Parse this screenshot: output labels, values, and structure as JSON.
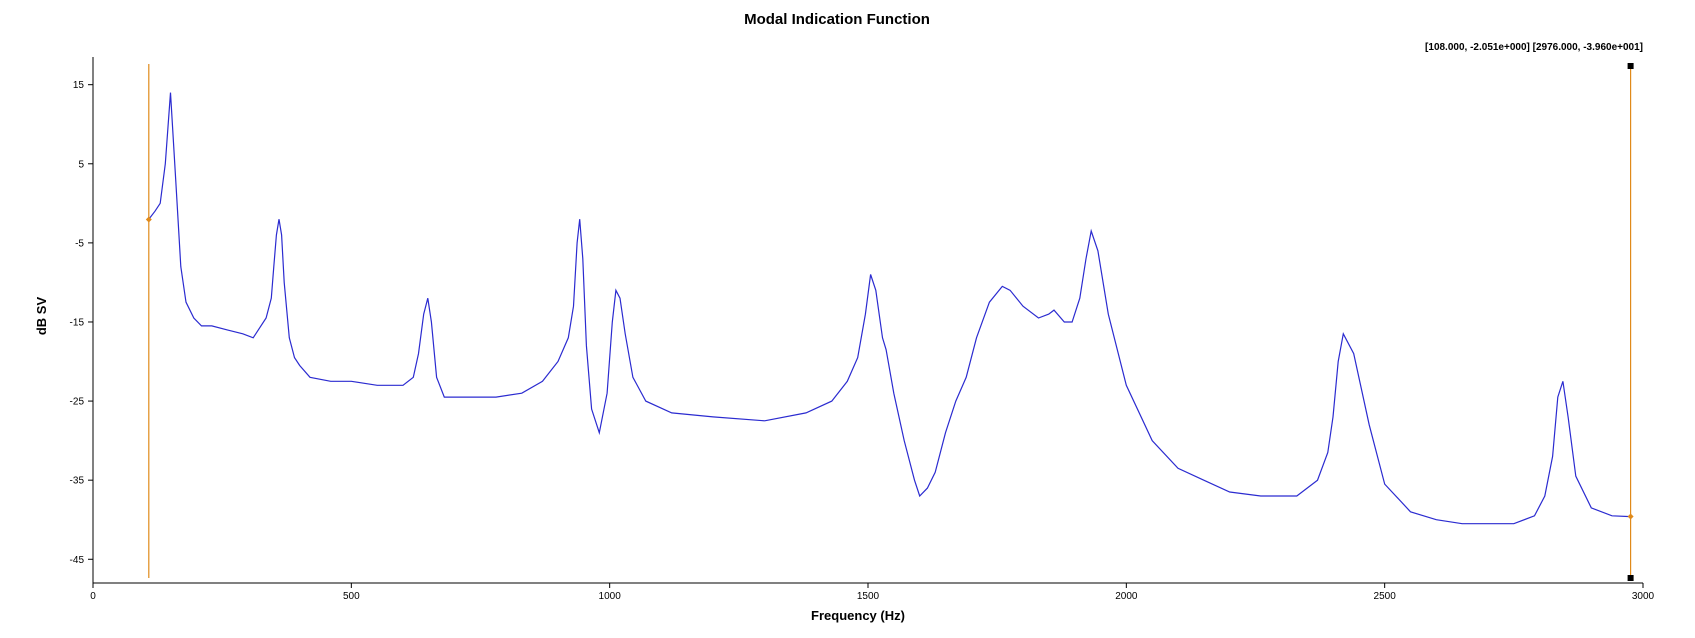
{
  "chart_data": {
    "type": "line",
    "title": "Modal Indication Function",
    "xlabel": "Frequency (Hz)",
    "ylabel": "dB SV",
    "xlim": [
      0,
      3000
    ],
    "ylim": [
      -48,
      18.5
    ],
    "x_ticks": [
      0,
      500,
      1000,
      1500,
      2000,
      2500,
      3000
    ],
    "y_ticks": [
      15,
      5,
      -5,
      -15,
      -25,
      -35,
      -45
    ],
    "grid": false,
    "legend": "none",
    "cursor_readout": "[108.000, -2.051e+000] [2976.000, -3.960e+001]",
    "cursors": [
      {
        "x": 108,
        "y": -2.051
      },
      {
        "x": 2976,
        "y": -39.6
      }
    ],
    "series": [
      {
        "x": [
          108,
          120,
          130,
          140,
          150,
          160,
          170,
          180,
          195,
          210,
          230,
          260,
          290,
          310,
          320,
          335,
          345,
          350,
          355,
          360,
          365,
          370,
          380,
          390,
          400,
          420,
          460,
          500,
          550,
          600,
          620,
          630,
          640,
          648,
          655,
          665,
          680,
          720,
          780,
          830,
          870,
          900,
          920,
          930,
          937,
          942,
          948,
          955,
          965,
          980,
          995,
          1005,
          1012,
          1020,
          1030,
          1045,
          1070,
          1120,
          1200,
          1300,
          1380,
          1430,
          1460,
          1480,
          1495,
          1505,
          1515,
          1528,
          1535,
          1550,
          1570,
          1590,
          1600,
          1615,
          1630,
          1650,
          1670,
          1690,
          1710,
          1735,
          1760,
          1775,
          1800,
          1830,
          1850,
          1860,
          1880,
          1895,
          1910,
          1922,
          1932,
          1945,
          1965,
          2000,
          2050,
          2100,
          2150,
          2200,
          2260,
          2330,
          2370,
          2390,
          2400,
          2410,
          2420,
          2440,
          2470,
          2500,
          2550,
          2600,
          2650,
          2700,
          2750,
          2790,
          2810,
          2825,
          2835,
          2845,
          2855,
          2870,
          2900,
          2940,
          2976
        ],
        "y": [
          -2,
          -1,
          0,
          5,
          14,
          3,
          -8,
          -12.5,
          -14.5,
          -15.5,
          -15.5,
          -16,
          -16.5,
          -17,
          -16,
          -14.5,
          -12,
          -8,
          -4,
          -2,
          -4,
          -10,
          -17,
          -19.5,
          -20.5,
          -22,
          -22.5,
          -22.5,
          -23,
          -23,
          -22,
          -19,
          -14,
          -12,
          -15,
          -22,
          -24.5,
          -24.5,
          -24.5,
          -24,
          -22.5,
          -20,
          -17,
          -13,
          -5,
          -2,
          -7,
          -18,
          -26,
          -29,
          -24,
          -15,
          -11,
          -12,
          -16.5,
          -22,
          -25,
          -26.5,
          -27,
          -27.5,
          -26.5,
          -25,
          -22.5,
          -19.5,
          -14,
          -9,
          -11,
          -17,
          -18.5,
          -24,
          -30,
          -35,
          -37,
          -36,
          -34,
          -29,
          -25,
          -22,
          -17,
          -12.5,
          -10.5,
          -11,
          -13,
          -14.5,
          -14,
          -13.5,
          -15,
          -15,
          -12,
          -7,
          -3.5,
          -6,
          -14,
          -23,
          -30,
          -33.5,
          -35,
          -36.5,
          -37,
          -37,
          -35,
          -31.5,
          -27,
          -20,
          -16.5,
          -19,
          -28,
          -35.5,
          -39,
          -40,
          -40.5,
          -40.5,
          -40.5,
          -39.5,
          -37,
          -32,
          -24.5,
          -22.5,
          -27,
          -34.5,
          -38.5,
          -39.5,
          -39.6
        ]
      }
    ]
  }
}
